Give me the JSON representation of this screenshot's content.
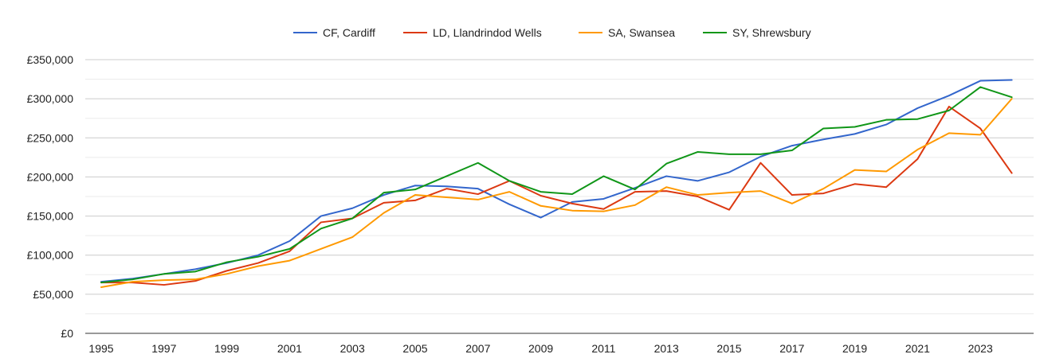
{
  "chart_data": {
    "type": "line",
    "x": [
      1995,
      1996,
      1997,
      1998,
      1999,
      2000,
      2001,
      2002,
      2003,
      2004,
      2005,
      2006,
      2007,
      2008,
      2009,
      2010,
      2011,
      2012,
      2013,
      2014,
      2015,
      2016,
      2017,
      2018,
      2019,
      2020,
      2021,
      2022,
      2023,
      2024
    ],
    "x_ticks": [
      "1995",
      "1997",
      "1999",
      "2001",
      "2003",
      "2005",
      "2007",
      "2009",
      "2011",
      "2013",
      "2015",
      "2017",
      "2019",
      "2021",
      "2023"
    ],
    "y_ticks": [
      "£0",
      "£50,000",
      "£100,000",
      "£150,000",
      "£200,000",
      "£250,000",
      "£300,000",
      "£350,000"
    ],
    "ylim": [
      0,
      350000
    ],
    "grid": true,
    "legend_position": "top",
    "series": [
      {
        "name": "CF, Cardiff",
        "color": "#3366cc",
        "values": [
          66000,
          70000,
          76000,
          82000,
          90000,
          100000,
          118000,
          150000,
          160000,
          177000,
          189000,
          188000,
          185000,
          165000,
          148000,
          168000,
          172000,
          186000,
          201000,
          195000,
          206000,
          226000,
          240000,
          248000,
          255000,
          267000,
          288000,
          304000,
          323000,
          324000
        ]
      },
      {
        "name": "LD, Llandrindod Wells",
        "color": "#dc3912",
        "values": [
          65000,
          65000,
          62000,
          67000,
          80000,
          90000,
          105000,
          142000,
          147000,
          167000,
          170000,
          185000,
          178000,
          195000,
          176000,
          166000,
          159000,
          181000,
          182000,
          175000,
          158000,
          218000,
          177000,
          179000,
          191000,
          187000,
          223000,
          290000,
          262000,
          205000
        ]
      },
      {
        "name": "SA, Swansea",
        "color": "#ff9900",
        "values": [
          59000,
          66000,
          68000,
          69000,
          76000,
          86000,
          93000,
          108000,
          123000,
          154000,
          177000,
          174000,
          171000,
          181000,
          163000,
          157000,
          156000,
          164000,
          187000,
          177000,
          180000,
          182000,
          166000,
          185000,
          209000,
          207000,
          235000,
          256000,
          254000,
          300000
        ]
      },
      {
        "name": "SY, Shrewsbury",
        "color": "#109618",
        "values": [
          65000,
          69000,
          76000,
          79000,
          91000,
          98000,
          108000,
          134000,
          147000,
          180000,
          184000,
          201000,
          218000,
          195000,
          181000,
          178000,
          201000,
          184000,
          217000,
          232000,
          229000,
          229000,
          234000,
          262000,
          264000,
          273000,
          274000,
          285000,
          315000,
          302000
        ]
      }
    ]
  }
}
